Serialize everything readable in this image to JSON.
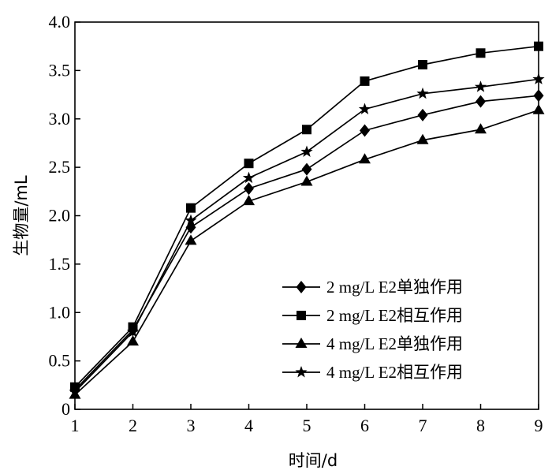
{
  "chart_data": {
    "type": "line",
    "title": "",
    "xlabel": "时间/d",
    "ylabel": "生物量/mL",
    "x": [
      1,
      2,
      3,
      4,
      5,
      6,
      7,
      8,
      9
    ],
    "xlim": [
      1,
      9
    ],
    "ylim": [
      0,
      4.0
    ],
    "y_ticks": [
      "0",
      "0.5",
      "1.0",
      "1.5",
      "2.0",
      "2.5",
      "3.0",
      "3.5",
      "4.0"
    ],
    "x_ticks": [
      "1",
      "2",
      "3",
      "4",
      "5",
      "6",
      "7",
      "8",
      "9"
    ],
    "grid": false,
    "legend_position": "bottom-right",
    "series": [
      {
        "name": "2 mg/L E2单独作用",
        "marker": "diamond",
        "values": [
          0.2,
          0.82,
          1.88,
          2.28,
          2.48,
          2.88,
          3.04,
          3.18,
          3.24
        ]
      },
      {
        "name": "2 mg/L E2相互作用",
        "marker": "square",
        "values": [
          0.23,
          0.85,
          2.08,
          2.54,
          2.89,
          3.39,
          3.56,
          3.68,
          3.75
        ]
      },
      {
        "name": "4 mg/L E2单独作用",
        "marker": "triangle",
        "values": [
          0.15,
          0.7,
          1.74,
          2.15,
          2.35,
          2.58,
          2.78,
          2.89,
          3.09
        ]
      },
      {
        "name": "4 mg/L E2相互作用",
        "marker": "star",
        "values": [
          0.18,
          0.8,
          1.95,
          2.39,
          2.66,
          3.1,
          3.26,
          3.33,
          3.41
        ]
      }
    ]
  }
}
